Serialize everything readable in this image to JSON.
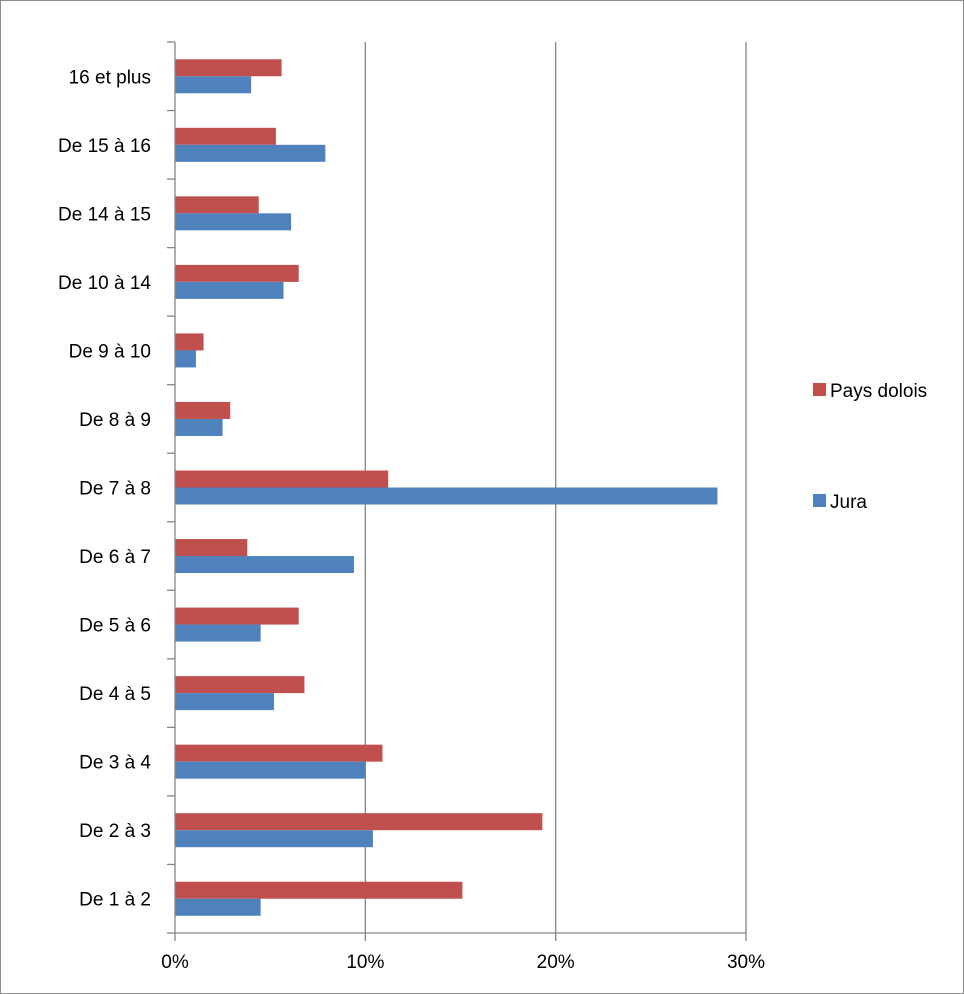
{
  "chart_data": {
    "type": "bar",
    "orientation": "horizontal",
    "categories": [
      "De 1 à 2",
      "De 2 à 3",
      "De 3 à 4",
      "De 4 à 5",
      "De 5 à 6",
      "De 6 à 7",
      "De 7 à 8",
      "De 8 à 9",
      "De 9 à 10",
      "De 10 à 14",
      "De 14 à 15",
      "De 15 à 16",
      "16 et plus"
    ],
    "series": [
      {
        "name": "Jura",
        "color": "#4f81bd",
        "values": [
          4.5,
          10.4,
          10.0,
          5.2,
          4.5,
          9.4,
          28.5,
          2.5,
          1.1,
          5.7,
          6.1,
          7.9,
          4.0
        ]
      },
      {
        "name": "Pays dolois",
        "color": "#c0504d",
        "values": [
          15.1,
          19.3,
          10.9,
          6.8,
          6.5,
          3.8,
          11.2,
          2.9,
          1.5,
          6.5,
          4.4,
          5.3,
          5.6
        ]
      }
    ],
    "xlim": [
      0,
      30
    ],
    "x_ticks": [
      "0%",
      "10%",
      "20%",
      "30%"
    ],
    "x_tick_values": [
      0,
      10,
      20,
      30
    ],
    "grid": true,
    "legend_position": "right"
  }
}
